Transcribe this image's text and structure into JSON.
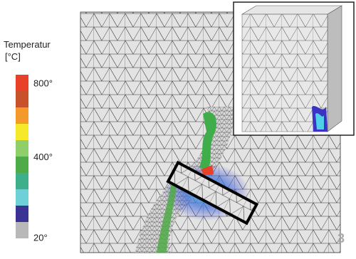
{
  "legend": {
    "title": "Temperatur",
    "unit": "[°C]",
    "colors": [
      "#e8412a",
      "#c8502a",
      "#f39a2a",
      "#f6e92a",
      "#8fcf6a",
      "#4faa48",
      "#3fae8a",
      "#6fd0d8",
      "#3a3393",
      "#b8b8b8"
    ],
    "labels": [
      "800°",
      "400°",
      "20°"
    ]
  },
  "figure_number": "3"
}
